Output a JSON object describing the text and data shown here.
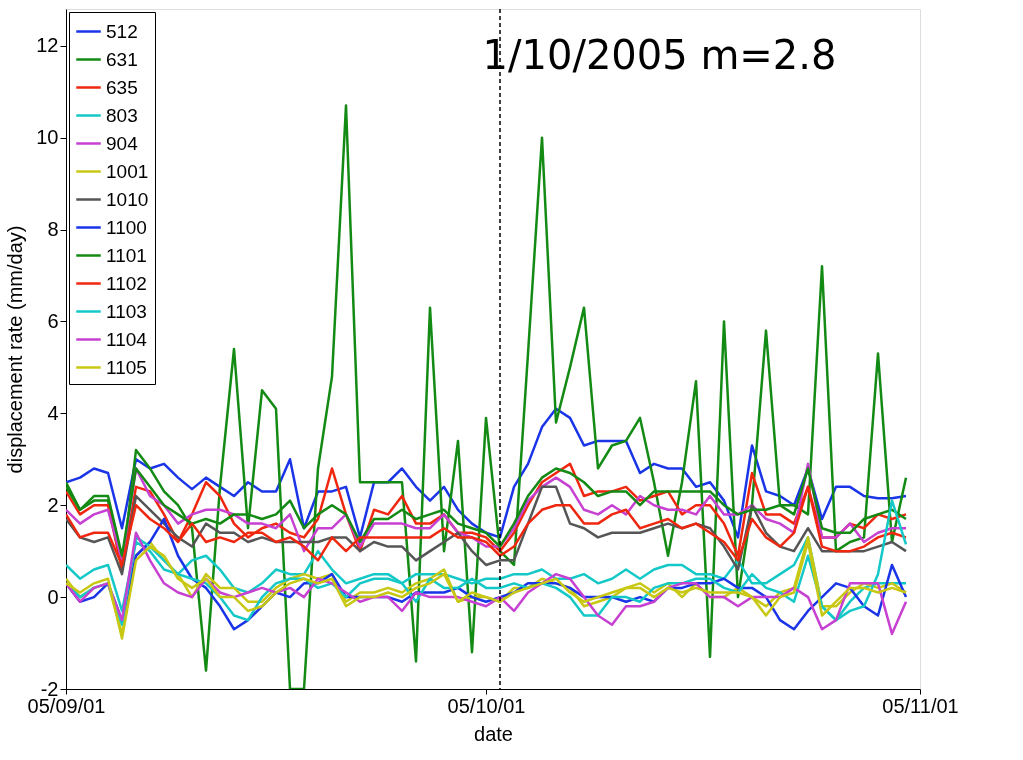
{
  "chart_data": {
    "type": "line",
    "xlabel": "date",
    "ylabel": "displacement rate (mm/day)",
    "annotations": [
      "1/10/2005 m=2.8"
    ],
    "xlim": [
      "2005-09-01",
      "2005-11-01"
    ],
    "xticks": [
      {
        "value": "2005-09-01",
        "label": "05/09/01"
      },
      {
        "value": "2005-10-01",
        "label": "05/10/01"
      },
      {
        "value": "2005-11-01",
        "label": "05/11/01"
      }
    ],
    "ylim": [
      -2,
      12.8
    ],
    "yticks": [
      -2,
      0,
      2,
      4,
      6,
      8,
      10,
      12
    ],
    "grid": false,
    "legend": "top left",
    "line_style": "solid",
    "ref_lines": [
      {
        "axis": "x",
        "value": "2005-10-02",
        "color": "#000000",
        "line_style": "dashed"
      }
    ],
    "series": [
      {
        "name": "512",
        "color": "#1a35e8",
        "values": [
          2.5,
          2.6,
          2.8,
          2.7,
          1.5,
          3.0,
          2.8,
          2.9,
          2.6,
          2.35,
          2.6,
          2.4,
          2.2,
          2.5,
          2.3,
          2.3,
          3.0,
          1.5,
          2.3,
          2.3,
          2.4,
          1.3,
          2.5,
          2.5,
          2.8,
          2.4,
          2.1,
          2.4,
          1.9,
          1.6,
          1.4,
          1.3,
          2.4,
          2.9,
          3.7,
          4.1,
          3.9,
          3.3,
          3.4,
          3.4,
          3.4,
          2.7,
          2.9,
          2.8,
          2.8,
          2.4,
          2.5,
          2.1,
          1.3,
          3.3,
          2.3,
          2.2,
          2.0,
          2.8,
          1.7,
          2.4,
          2.4,
          2.2,
          2.15,
          2.15,
          2.2
        ]
      },
      {
        "name": "631",
        "color": "#138a13",
        "values": [
          2.5,
          1.9,
          2.1,
          2.1,
          0.6,
          3.2,
          2.8,
          2.3,
          2.0,
          1.5,
          -1.6,
          2.4,
          5.4,
          1.5,
          4.5,
          4.1,
          -2,
          -2,
          2.8,
          4.8,
          10.7,
          2.5,
          2.5,
          2.5,
          2.5,
          -1.4,
          6.3,
          1.0,
          3.4,
          -1.2,
          3.9,
          1.0,
          0.7,
          5.3,
          10.0,
          3.8,
          5.0,
          6.3,
          2.8,
          3.3,
          3.4,
          3.9,
          2.5,
          0.9,
          2.5,
          4.7,
          -1.3,
          6.0,
          0.0,
          2.0,
          5.8,
          2.0,
          2.0,
          1.8,
          7.2,
          1.0,
          1.2,
          1.3,
          5.3,
          1.2,
          2.6
        ]
      },
      {
        "name": "635",
        "color": "#f0270f",
        "values": [
          2.3,
          1.8,
          2.0,
          2.0,
          0.6,
          2.4,
          2.3,
          1.8,
          1.2,
          1.8,
          2.5,
          2.2,
          1.6,
          1.3,
          1.5,
          1.6,
          1.4,
          1.3,
          1.7,
          2.8,
          1.8,
          1.0,
          1.9,
          1.8,
          2.2,
          1.6,
          1.6,
          1.8,
          1.4,
          1.4,
          1.3,
          1.0,
          1.4,
          2.0,
          2.5,
          2.7,
          2.9,
          2.2,
          2.3,
          2.3,
          2.4,
          2.1,
          2.2,
          2.3,
          1.8,
          2.0,
          2.0,
          1.6,
          0.9,
          2.7,
          1.8,
          1.8,
          1.6,
          2.4,
          1.3,
          1.3,
          1.6,
          1.5,
          1.8,
          1.7,
          1.8
        ]
      },
      {
        "name": "803",
        "color": "#14c8c8",
        "values": [
          0.7,
          0.4,
          0.6,
          0.7,
          -0.3,
          1.2,
          1.0,
          0.6,
          0.5,
          0.8,
          0.9,
          0.6,
          0.2,
          0.1,
          0.3,
          0.6,
          0.5,
          0.5,
          1.0,
          0.6,
          0.3,
          0.4,
          0.5,
          0.5,
          0.3,
          0.5,
          0.5,
          0.5,
          0.4,
          0.3,
          0.4,
          0.4,
          0.5,
          0.5,
          0.6,
          0.4,
          0.4,
          0.5,
          0.3,
          0.4,
          0.6,
          0.4,
          0.6,
          0.7,
          0.7,
          0.5,
          0.5,
          0.4,
          0.8,
          0.3,
          0.3,
          0.5,
          0.7,
          1.3,
          -0.2,
          -0.5,
          -0.1,
          0.2,
          0.3,
          0.3,
          0.3
        ]
      },
      {
        "name": "904",
        "color": "#c640d2",
        "values": [
          1.9,
          1.6,
          1.8,
          1.9,
          0.8,
          2.8,
          2.2,
          2.0,
          1.6,
          1.8,
          1.9,
          1.9,
          1.8,
          1.6,
          1.6,
          1.5,
          1.8,
          1.0,
          1.5,
          1.5,
          1.8,
          1.1,
          1.6,
          1.6,
          1.6,
          1.5,
          1.5,
          1.8,
          1.4,
          1.3,
          1.1,
          1.1,
          1.5,
          2.1,
          2.4,
          2.6,
          2.4,
          1.9,
          1.8,
          2.0,
          1.8,
          2.2,
          2.0,
          1.9,
          1.9,
          1.8,
          2.2,
          1.8,
          1.8,
          2.0,
          1.7,
          1.6,
          1.4,
          2.9,
          1.3,
          1.3,
          1.6,
          1.2,
          1.4,
          1.5,
          1.5
        ]
      },
      {
        "name": "1001",
        "color": "#c8c814",
        "values": [
          0.4,
          0.0,
          0.2,
          0.3,
          -0.8,
          0.9,
          1.2,
          0.8,
          0.5,
          0.0,
          0.5,
          0.2,
          0.2,
          -0.1,
          -0.1,
          0.2,
          0.4,
          0.5,
          0.4,
          0.5,
          -0.1,
          0.1,
          0.1,
          0.2,
          0.1,
          0.3,
          0.4,
          0.6,
          -0.1,
          0.0,
          0.0,
          -0.1,
          0.2,
          0.2,
          0.4,
          0.3,
          0.2,
          -0.2,
          -0.1,
          0.0,
          0.2,
          0.3,
          0.1,
          0.3,
          0.0,
          0.3,
          0.0,
          0.0,
          0.2,
          0.0,
          -0.2,
          0.1,
          0.2,
          1.3,
          -0.2,
          -0.2,
          0.1,
          0.3,
          0.2,
          0.3,
          0.1
        ]
      },
      {
        "name": "1010",
        "color": "#555555",
        "values": [
          1.7,
          1.3,
          1.2,
          1.3,
          0.5,
          2.2,
          1.9,
          1.6,
          1.3,
          1.1,
          1.6,
          1.4,
          1.4,
          1.2,
          1.3,
          1.2,
          1.2,
          1.2,
          1.2,
          1.3,
          1.3,
          1.0,
          1.2,
          1.1,
          1.1,
          0.8,
          1.0,
          1.2,
          1.4,
          1.0,
          0.7,
          0.8,
          0.8,
          1.6,
          2.4,
          2.4,
          1.6,
          1.5,
          1.3,
          1.4,
          1.4,
          1.4,
          1.5,
          1.6,
          1.5,
          1.6,
          1.5,
          1.1,
          0.6,
          2.0,
          1.4,
          1.1,
          1.0,
          1.5,
          1.0,
          1.0,
          1.0,
          1.0,
          1.1,
          1.2,
          1.0
        ]
      },
      {
        "name": "1100",
        "color": "#1a35e8",
        "values": [
          0.3,
          -0.1,
          0.0,
          0.3,
          -0.5,
          0.9,
          1.2,
          1.7,
          0.9,
          0.4,
          0.2,
          -0.2,
          -0.7,
          -0.5,
          -0.2,
          0.1,
          0.0,
          0.3,
          0.3,
          0.5,
          0.0,
          0.0,
          0.0,
          0.0,
          -0.1,
          0.1,
          0.1,
          0.1,
          0.2,
          0.0,
          -0.1,
          0.0,
          0.1,
          0.3,
          0.3,
          0.3,
          0.2,
          0.0,
          0.0,
          0.0,
          -0.1,
          0.0,
          -0.1,
          0.2,
          0.2,
          0.3,
          0.3,
          0.4,
          0.2,
          0.2,
          0.0,
          -0.5,
          -0.7,
          -0.3,
          0.0,
          0.3,
          0.2,
          -0.2,
          -0.4,
          0.7,
          0.0
        ]
      },
      {
        "name": "1101",
        "color": "#138a13",
        "values": [
          2.4,
          1.9,
          2.2,
          2.2,
          0.9,
          2.8,
          2.4,
          2.0,
          1.8,
          1.6,
          1.7,
          1.6,
          1.8,
          1.8,
          1.7,
          1.8,
          2.1,
          1.5,
          1.8,
          2.0,
          1.8,
          1.2,
          1.7,
          1.7,
          1.9,
          1.7,
          1.8,
          1.9,
          1.6,
          1.5,
          1.4,
          1.1,
          1.6,
          2.2,
          2.6,
          2.8,
          2.7,
          2.5,
          2.2,
          2.3,
          2.3,
          2.0,
          2.3,
          2.3,
          2.3,
          2.3,
          2.3,
          2.0,
          1.8,
          1.9,
          1.9,
          2.0,
          1.8,
          2.8,
          1.5,
          1.4,
          1.4,
          1.7,
          1.8,
          1.9,
          1.7
        ]
      },
      {
        "name": "1102",
        "color": "#f0270f",
        "values": [
          1.8,
          1.3,
          1.4,
          1.4,
          0.7,
          2.0,
          1.7,
          1.5,
          1.2,
          1.6,
          1.2,
          1.3,
          1.2,
          1.4,
          1.4,
          1.2,
          1.3,
          1.1,
          0.8,
          1.3,
          1.0,
          1.3,
          1.3,
          1.3,
          1.3,
          1.3,
          1.3,
          1.5,
          1.3,
          1.3,
          1.2,
          0.9,
          1.1,
          1.6,
          1.9,
          2.0,
          2.0,
          1.6,
          1.6,
          1.8,
          1.9,
          1.5,
          1.6,
          1.7,
          1.5,
          1.6,
          1.4,
          1.2,
          0.8,
          1.7,
          1.3,
          1.1,
          1.4,
          2.4,
          1.1,
          1.0,
          1.0,
          1.1,
          1.3,
          1.4,
          1.3
        ]
      },
      {
        "name": "1103",
        "color": "#14c8c8",
        "values": [
          0.3,
          0.0,
          0.2,
          0.3,
          -0.6,
          1.3,
          1.1,
          0.8,
          0.5,
          0.4,
          0.3,
          0.0,
          -0.4,
          -0.5,
          0.0,
          0.3,
          0.4,
          0.4,
          0.2,
          0.3,
          0.0,
          0.3,
          0.4,
          0.4,
          0.3,
          -0.1,
          0.4,
          0.2,
          0.2,
          0.4,
          0.2,
          0.2,
          0.3,
          0.2,
          0.3,
          0.2,
          0.0,
          -0.4,
          -0.4,
          0.0,
          0.0,
          -0.1,
          0.2,
          0.3,
          0.3,
          0.4,
          0.4,
          0.2,
          0.1,
          0.5,
          0.2,
          0.1,
          -0.1,
          0.9,
          -0.2,
          -0.5,
          -0.3,
          -0.2,
          0.5,
          2.1,
          1.15
        ]
      },
      {
        "name": "1104",
        "color": "#c640d2",
        "values": [
          0.3,
          -0.1,
          0.2,
          0.3,
          -0.5,
          1.4,
          0.8,
          0.3,
          0.1,
          0.0,
          0.4,
          0.1,
          0.0,
          0.1,
          0.2,
          0.1,
          0.2,
          0.0,
          0.4,
          0.3,
          0.1,
          -0.1,
          0.0,
          0.0,
          -0.3,
          0.1,
          0.0,
          0.0,
          0.0,
          -0.1,
          -0.2,
          0.0,
          -0.3,
          0.1,
          0.3,
          0.5,
          0.4,
          0.0,
          -0.4,
          -0.6,
          -0.2,
          -0.2,
          -0.1,
          0.2,
          0.3,
          0.3,
          0.0,
          0.0,
          -0.2,
          0.0,
          0.0,
          0.0,
          0.2,
          0.0,
          -0.7,
          -0.5,
          0.3,
          0.3,
          0.3,
          -0.8,
          -0.1
        ]
      },
      {
        "name": "1105",
        "color": "#c8c814",
        "values": [
          0.3,
          0.1,
          0.3,
          0.4,
          -0.9,
          0.8,
          1.1,
          0.9,
          0.4,
          0.2,
          0.4,
          0.0,
          0.0,
          -0.3,
          -0.2,
          0.1,
          0.3,
          0.4,
          0.3,
          0.4,
          -0.2,
          0.0,
          0.0,
          0.1,
          0.0,
          0.2,
          0.3,
          0.5,
          -0.1,
          0.1,
          0.0,
          -0.1,
          0.1,
          0.2,
          0.3,
          0.4,
          0.1,
          -0.1,
          0.0,
          0.1,
          0.2,
          0.2,
          0.0,
          0.2,
          0.1,
          0.2,
          0.1,
          0.1,
          0.1,
          0.0,
          -0.4,
          0.0,
          0.1,
          1.2,
          -0.4,
          -0.1,
          0.2,
          0.2,
          0.1,
          0.2,
          0.1
        ]
      }
    ],
    "x": [
      "2005-09-01",
      "2005-09-02",
      "2005-09-03",
      "2005-09-04",
      "2005-09-05",
      "2005-09-06",
      "2005-09-07",
      "2005-09-08",
      "2005-09-09",
      "2005-09-10",
      "2005-09-11",
      "2005-09-12",
      "2005-09-13",
      "2005-09-14",
      "2005-09-15",
      "2005-09-16",
      "2005-09-17",
      "2005-09-18",
      "2005-09-19",
      "2005-09-20",
      "2005-09-21",
      "2005-09-22",
      "2005-09-23",
      "2005-09-24",
      "2005-09-25",
      "2005-09-26",
      "2005-09-27",
      "2005-09-28",
      "2005-09-29",
      "2005-09-30",
      "2005-10-01",
      "2005-10-02",
      "2005-10-03",
      "2005-10-04",
      "2005-10-05",
      "2005-10-06",
      "2005-10-07",
      "2005-10-08",
      "2005-10-09",
      "2005-10-10",
      "2005-10-11",
      "2005-10-12",
      "2005-10-13",
      "2005-10-14",
      "2005-10-15",
      "2005-10-16",
      "2005-10-17",
      "2005-10-18",
      "2005-10-19",
      "2005-10-20",
      "2005-10-21",
      "2005-10-22",
      "2005-10-23",
      "2005-10-24",
      "2005-10-25",
      "2005-10-26",
      "2005-10-27",
      "2005-10-28",
      "2005-10-29",
      "2005-10-30",
      "2005-10-31"
    ]
  }
}
